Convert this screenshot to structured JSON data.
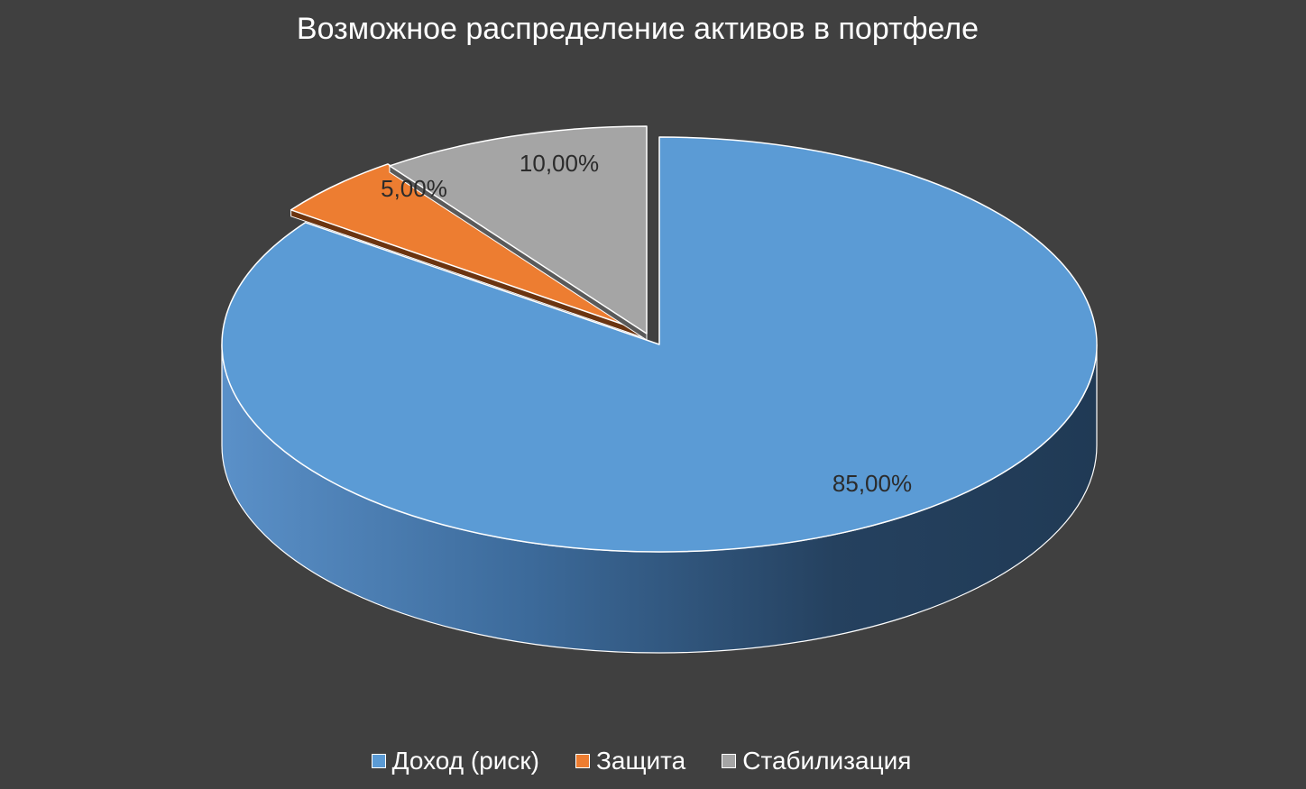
{
  "chart_data": {
    "type": "pie",
    "title": "Возможное распределение активов в портфеле",
    "three_d": true,
    "exploded": true,
    "categories": [
      "Доход (риск)",
      "Защита",
      "Стабилизация"
    ],
    "values": [
      85,
      5,
      10
    ],
    "data_labels": [
      "85,00%",
      "5,00%",
      "10,00%"
    ],
    "colors": [
      "#5B9BD5",
      "#ED7D31",
      "#A5A5A5"
    ],
    "legend_position": "bottom"
  }
}
